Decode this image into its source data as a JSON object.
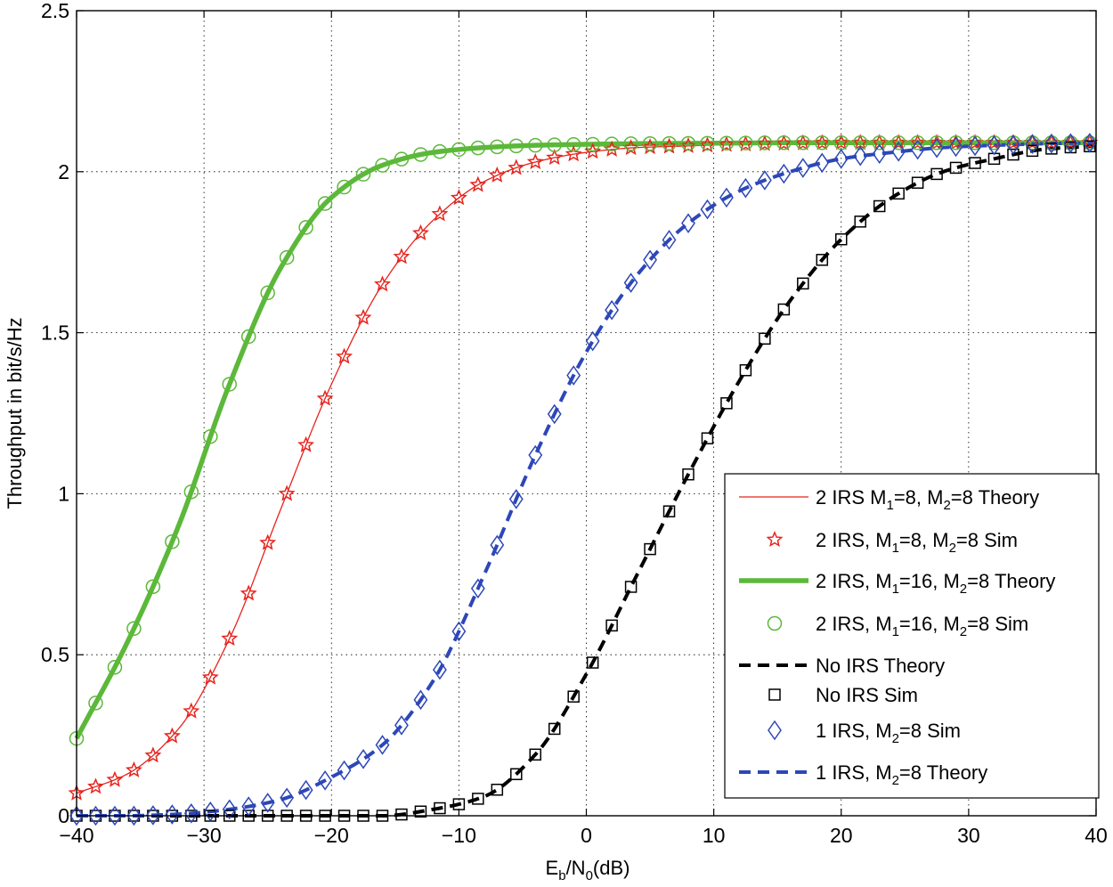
{
  "chart_data": {
    "type": "line",
    "title": "",
    "xlabel": "E_b/N_0(dB)",
    "xlabel_parts": {
      "main": "E",
      "sub1": "b",
      "mid": "/N",
      "sub2": "0",
      "tail": "(dB)"
    },
    "ylabel": "Throughput in bit/s/Hz",
    "xlim": [
      -40,
      40
    ],
    "ylim": [
      0,
      2.5
    ],
    "grid": true,
    "legend_position": "bottom-right",
    "xticks": [
      -40,
      -30,
      -20,
      -10,
      0,
      10,
      20,
      30,
      40
    ],
    "xtick_labels": [
      "−40",
      "−30",
      "−20",
      "−10",
      "0",
      "10",
      "20",
      "30",
      "40"
    ],
    "yticks": [
      0,
      0.5,
      1,
      1.5,
      2,
      2.5
    ],
    "ytick_labels": [
      "0",
      "0.5",
      "1",
      "1.5",
      "2",
      "2.5"
    ],
    "x": [
      -40,
      -36,
      -32,
      -28,
      -24,
      -20,
      -16,
      -12,
      -8,
      -4,
      0,
      4,
      8,
      12,
      16,
      20,
      24,
      28,
      32,
      36,
      40
    ],
    "series": [
      {
        "id": "irs2_m8_theory",
        "legend_parts": [
          "2 IRS M",
          "1",
          "=8, M",
          "2",
          "=8 Theory"
        ],
        "color": "#e8231c",
        "style": "thin-line",
        "values": [
          0.07,
          0.13,
          0.27,
          0.55,
          0.95,
          1.34,
          1.65,
          1.85,
          1.97,
          2.03,
          2.06,
          2.075,
          2.08,
          2.085,
          2.088,
          2.09,
          2.09,
          2.09,
          2.09,
          2.09,
          2.09
        ]
      },
      {
        "id": "irs2_m8_sim",
        "legend_parts": [
          "2 IRS, M",
          "1",
          "=8, M",
          "2",
          "=8 Sim"
        ],
        "color": "#e8231c",
        "style": "star-marker",
        "values": [
          0.07,
          0.13,
          0.27,
          0.55,
          0.95,
          1.34,
          1.65,
          1.85,
          1.97,
          2.03,
          2.06,
          2.075,
          2.08,
          2.085,
          2.088,
          2.09,
          2.09,
          2.09,
          2.09,
          2.09,
          2.09
        ]
      },
      {
        "id": "irs2_m16_theory",
        "legend_parts": [
          "2 IRS, M",
          "1",
          "=16, M",
          "2",
          "=8 Theory"
        ],
        "color": "#5cb83a",
        "style": "thick-line",
        "values": [
          0.24,
          0.54,
          0.9,
          1.34,
          1.7,
          1.92,
          2.02,
          2.06,
          2.075,
          2.082,
          2.085,
          2.087,
          2.088,
          2.089,
          2.09,
          2.09,
          2.09,
          2.09,
          2.09,
          2.09,
          2.09
        ]
      },
      {
        "id": "irs2_m16_sim",
        "legend_parts": [
          "2 IRS, M",
          "1",
          "=16, M",
          "2",
          "=8 Sim"
        ],
        "color": "#5cb83a",
        "style": "circle-marker",
        "values": [
          0.24,
          0.54,
          0.9,
          1.34,
          1.7,
          1.92,
          2.02,
          2.06,
          2.075,
          2.082,
          2.085,
          2.087,
          2.088,
          2.089,
          2.09,
          2.09,
          2.09,
          2.09,
          2.09,
          2.09,
          2.09
        ]
      },
      {
        "id": "no_irs_theory",
        "legend_parts": [
          "No IRS Theory"
        ],
        "color": "#000000",
        "style": "dashed-line",
        "values": [
          0,
          0,
          0,
          0,
          0,
          0,
          0,
          0.02,
          0.06,
          0.19,
          0.44,
          0.75,
          1.06,
          1.35,
          1.6,
          1.79,
          1.92,
          2.0,
          2.04,
          2.07,
          2.08
        ]
      },
      {
        "id": "no_irs_sim",
        "legend_parts": [
          "No IRS Sim"
        ],
        "color": "#000000",
        "style": "square-marker",
        "values": [
          0,
          0,
          0,
          0,
          0,
          0,
          0,
          0.02,
          0.06,
          0.19,
          0.44,
          0.75,
          1.06,
          1.35,
          1.6,
          1.79,
          1.92,
          2.0,
          2.04,
          2.07,
          2.08
        ]
      },
      {
        "id": "irs1_m8_sim",
        "legend_parts": [
          "1 IRS, M",
          "2",
          "=8 Sim"
        ],
        "color": "#2d47b8",
        "style": "diamond-marker",
        "values": [
          0,
          0,
          0.005,
          0.02,
          0.05,
          0.12,
          0.22,
          0.42,
          0.75,
          1.12,
          1.44,
          1.68,
          1.84,
          1.94,
          2.0,
          2.04,
          2.06,
          2.075,
          2.082,
          2.087,
          2.09
        ]
      },
      {
        "id": "irs1_m8_theory",
        "legend_parts": [
          "1 IRS, M",
          "2",
          "=8 Theory"
        ],
        "color": "#2d47b8",
        "style": "blue-dashed-line",
        "values": [
          0,
          0,
          0.005,
          0.02,
          0.05,
          0.12,
          0.22,
          0.42,
          0.75,
          1.12,
          1.44,
          1.68,
          1.84,
          1.94,
          2.0,
          2.04,
          2.06,
          2.075,
          2.082,
          2.087,
          2.09
        ]
      }
    ]
  }
}
